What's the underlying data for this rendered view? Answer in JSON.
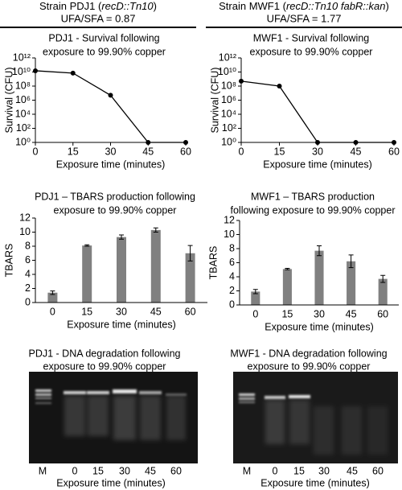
{
  "header": [
    {
      "strain": [
        "Strain PDJ1 (",
        "recD::Tn10",
        ")"
      ],
      "ratio": "UFA/SFA = 0.87"
    },
    {
      "strain": [
        "Strain MWF1 (",
        "recD::Tn10 fabR::kan",
        ")"
      ],
      "ratio": "UFA/SFA = 1.77"
    }
  ],
  "chart_data": [
    {
      "type": "line",
      "title": [
        "PDJ1 - Survival following",
        "exposure to 99.90% copper"
      ],
      "x": [
        0,
        15,
        30,
        45,
        60
      ],
      "values": [
        15000000000,
        7000000000,
        5000000,
        1,
        1
      ],
      "color": "#000000",
      "xlim": [
        0,
        60
      ],
      "xticks": [
        0,
        15,
        30,
        45,
        60
      ],
      "ylim": [
        1,
        1000000000000
      ],
      "log_scale": true,
      "yticks": [
        {
          "value": 1,
          "label": "10⁰"
        },
        {
          "value": 100,
          "label": "10²"
        },
        {
          "value": 10000,
          "label": "10⁴"
        },
        {
          "value": 1000000,
          "label": "10⁶"
        },
        {
          "value": 100000000,
          "label": "10⁸"
        },
        {
          "value": 10000000000,
          "label": "10¹⁰"
        },
        {
          "value": 1000000000000,
          "label": "10¹²"
        }
      ],
      "xlabel": "Exposure time (minutes)",
      "ylabel": "Survival (CFU)"
    },
    {
      "type": "line",
      "title": [
        "MWF1 - Survival following",
        "exposure to 99.90% copper"
      ],
      "x": [
        0,
        15,
        30,
        45,
        60
      ],
      "values": [
        500000000,
        100000000,
        1,
        1,
        1
      ],
      "color": "#000000",
      "xlim": [
        0,
        60
      ],
      "xticks": [
        0,
        15,
        30,
        45,
        60
      ],
      "ylim": [
        1,
        1000000000000
      ],
      "log_scale": true,
      "yticks": [
        {
          "value": 1,
          "label": "10⁰"
        },
        {
          "value": 100,
          "label": "10²"
        },
        {
          "value": 10000,
          "label": "10⁴"
        },
        {
          "value": 1000000,
          "label": "10⁶"
        },
        {
          "value": 100000000,
          "label": "10⁸"
        },
        {
          "value": 10000000000,
          "label": "10¹⁰"
        },
        {
          "value": 1000000000000,
          "label": "10¹²"
        }
      ],
      "xlabel": "Exposure time (minutes)",
      "ylabel": "Survival (CFU)"
    },
    {
      "type": "bar",
      "title": [
        "PDJ1 – TBARS production following",
        "exposure to 99.90% copper"
      ],
      "categories": [
        "0",
        "15",
        "30",
        "45",
        "60"
      ],
      "values": [
        1.4,
        8.1,
        9.3,
        10.3,
        7.0
      ],
      "errors": [
        0.25,
        0.1,
        0.3,
        0.3,
        1.1
      ],
      "color": "#808080",
      "ylim": [
        0,
        12
      ],
      "yticks": [
        0,
        2,
        4,
        6,
        8,
        10,
        12
      ],
      "xlabel": "Exposure time (minutes)",
      "ylabel": "TBARS"
    },
    {
      "type": "bar",
      "title": [
        "MWF1 – TBARS production",
        "following exposure to 99.90% copper"
      ],
      "categories": [
        "0",
        "15",
        "30",
        "45",
        "60"
      ],
      "values": [
        1.9,
        5.1,
        7.7,
        6.2,
        3.7
      ],
      "errors": [
        0.3,
        0.1,
        0.7,
        0.9,
        0.5
      ],
      "color": "#808080",
      "ylim": [
        0,
        12
      ],
      "yticks": [
        0,
        2,
        4,
        6,
        8,
        10,
        12
      ],
      "xlabel": "Exposure time (minutes)",
      "ylabel": "TBARS"
    }
  ],
  "gels": [
    {
      "title": [
        "PDJ1 - DNA degradation following",
        "exposure to 99.90% copper"
      ],
      "lanes": [
        "M",
        "0",
        "15",
        "30",
        "45",
        "60"
      ],
      "xlabel": "Exposure time (minutes)"
    },
    {
      "title": [
        "MWF1 - DNA degradation following",
        "exposure to 99.90% copper"
      ],
      "lanes": [
        "M",
        "0",
        "15",
        "30",
        "45",
        "60"
      ],
      "xlabel": "Exposure time (minutes)"
    }
  ]
}
